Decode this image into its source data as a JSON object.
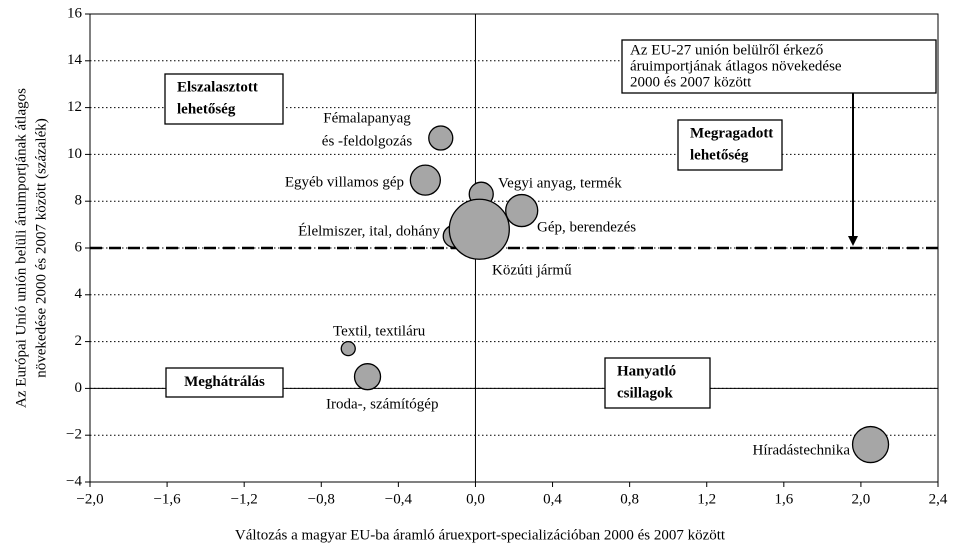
{
  "chart_data": {
    "type": "bubble",
    "x_label": "Változás a magyar EU-ba áramló áruexport-specializációban 2000 és 2007 között",
    "y_label": [
      "Az Európai Unió unión belüli áruimportjának átlagos",
      "növekedése 2000 és 2007 között (százalék)"
    ],
    "labels": [
      [
        "Fémalapanyag",
        "és -feldolgozás"
      ],
      [
        "Egyéb villamos gép"
      ],
      [
        "Vegyi anyag, termék"
      ],
      [
        "Gép, berendezés"
      ],
      [
        "Élelmiszer, ital, dohány"
      ],
      [
        "Közúti jármű"
      ],
      [
        "Textil, textiláru"
      ],
      [
        "Iroda-, számítógép"
      ],
      [
        "Híradástechnika"
      ]
    ],
    "x": [
      -0.18,
      -0.26,
      0.03,
      0.24,
      -0.11,
      0.02,
      -0.66,
      -0.56,
      2.05
    ],
    "y": [
      10.7,
      8.9,
      8.3,
      7.6,
      6.5,
      6.8,
      1.7,
      0.5,
      -2.4
    ],
    "sizes": [
      12,
      15,
      12,
      16,
      11,
      30,
      7,
      13,
      18
    ],
    "color": "#a6a6a6",
    "xlim": [
      -2.0,
      2.4
    ],
    "ylim": [
      -4,
      16
    ],
    "xticks": [
      {
        "value": -2.0,
        "label": "−2,0"
      },
      {
        "value": -1.6,
        "label": "−1,6"
      },
      {
        "value": -1.2,
        "label": "−1,2"
      },
      {
        "value": -0.8,
        "label": "−0,8"
      },
      {
        "value": -0.4,
        "label": "−0,4"
      },
      {
        "value": 0.0,
        "label": "0,0"
      },
      {
        "value": 0.4,
        "label": "0,4"
      },
      {
        "value": 0.8,
        "label": "0,8"
      },
      {
        "value": 1.2,
        "label": "1,2"
      },
      {
        "value": 1.6,
        "label": "1,6"
      },
      {
        "value": 2.0,
        "label": "2,0"
      },
      {
        "value": 2.4,
        "label": "2,4"
      }
    ],
    "yticks": [
      {
        "value": -4,
        "label": "−4"
      },
      {
        "value": -2,
        "label": "−2"
      },
      0,
      2,
      4,
      6,
      8,
      10,
      12,
      14,
      16
    ],
    "grid": true,
    "reference_line": 6,
    "quadrant_labels": [
      [
        "Elszalasztott",
        "lehetőség"
      ],
      [
        "Megragadott",
        "lehetőség"
      ],
      [
        "Meghátrálás"
      ],
      [
        "Hanyatló",
        "csillagok"
      ]
    ],
    "annotation": [
      "Az EU-27 unión belülről érkező",
      "áruimportjának átlagos növekedése",
      "2000 és 2007 között"
    ]
  }
}
